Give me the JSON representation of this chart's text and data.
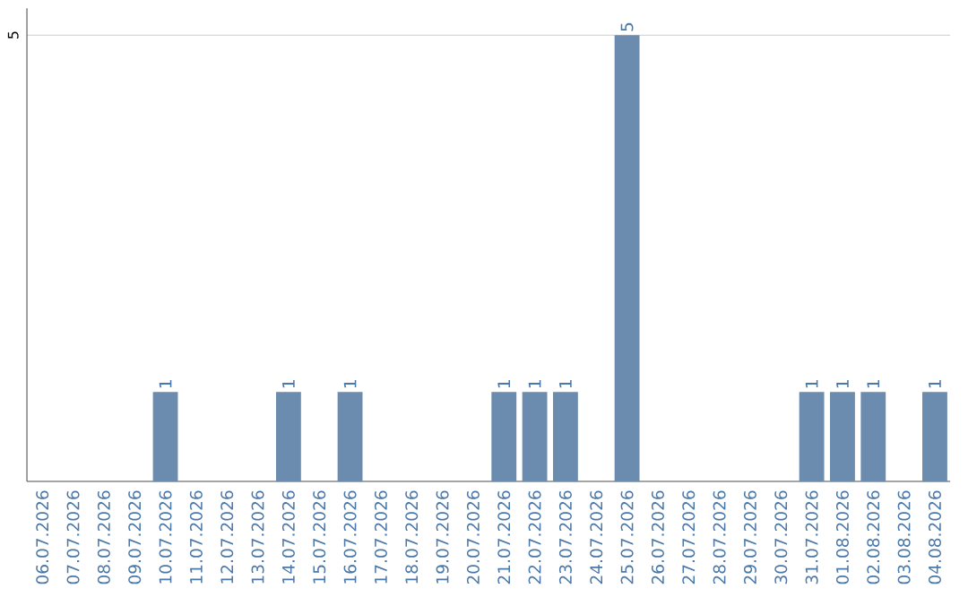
{
  "chart_data": {
    "type": "bar",
    "categories": [
      "06.07.2026",
      "07.07.2026",
      "08.07.2026",
      "09.07.2026",
      "10.07.2026",
      "11.07.2026",
      "12.07.2026",
      "13.07.2026",
      "14.07.2026",
      "15.07.2026",
      "16.07.2026",
      "17.07.2026",
      "18.07.2026",
      "19.07.2026",
      "20.07.2026",
      "21.07.2026",
      "22.07.2026",
      "23.07.2026",
      "24.07.2026",
      "25.07.2026",
      "26.07.2026",
      "27.07.2026",
      "28.07.2026",
      "29.07.2026",
      "30.07.2026",
      "31.07.2026",
      "01.08.2026",
      "02.08.2026",
      "03.08.2026",
      "04.08.2026"
    ],
    "values": [
      0,
      0,
      0,
      0,
      1,
      0,
      0,
      0,
      1,
      0,
      1,
      0,
      0,
      0,
      0,
      1,
      1,
      1,
      0,
      5,
      0,
      0,
      0,
      0,
      0,
      1,
      1,
      1,
      0,
      1
    ],
    "value_labels": [
      null,
      null,
      null,
      null,
      "1",
      null,
      null,
      null,
      "1",
      null,
      "1",
      null,
      null,
      null,
      null,
      "1",
      "1",
      "1",
      null,
      "5",
      null,
      null,
      null,
      null,
      null,
      "1",
      "1",
      "1",
      null,
      "1"
    ],
    "color": "#6b8cae",
    "ylim": [
      0,
      5.3
    ],
    "yticks": [
      5
    ],
    "grid": "y"
  }
}
